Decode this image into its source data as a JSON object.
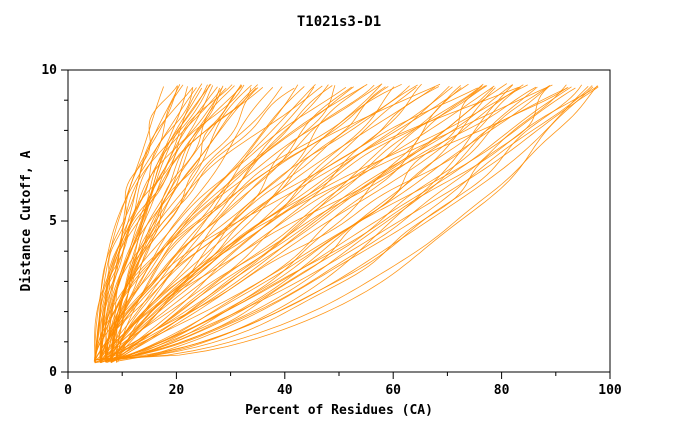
{
  "chart_data": {
    "type": "line",
    "title": "T1021s3-D1",
    "xlabel": "Percent of Residues (CA)",
    "ylabel": "Distance Cutoff, A",
    "xlim": [
      0,
      100
    ],
    "ylim": [
      0,
      10
    ],
    "x_ticks": [
      0,
      20,
      40,
      60,
      80,
      100
    ],
    "x_minor_ticks": [
      10,
      30,
      50,
      70,
      90
    ],
    "y_ticks": [
      0,
      5,
      10
    ],
    "y_minor_ticks": [
      1,
      2,
      3,
      4,
      6,
      7,
      8,
      9
    ],
    "line_color": "#ff8c00",
    "frame_color": "#000000",
    "background_color": "#ffffff",
    "legend": "none",
    "grid": false,
    "series_note": "Each model curve parameterized as [start_percent_at_low_cutoff, end_percent_at_cutoff_9.5, shape_exponent]; x = percent of residues under distance cutoff y",
    "series": [
      [
        5,
        18,
        1.6
      ],
      [
        6,
        19,
        1.8
      ],
      [
        5,
        20,
        1.4
      ],
      [
        7,
        20,
        2.0
      ],
      [
        6,
        21,
        1.5
      ],
      [
        5,
        22,
        1.9
      ],
      [
        8,
        22,
        1.3
      ],
      [
        6,
        23,
        1.7
      ],
      [
        7,
        24,
        1.5
      ],
      [
        5,
        24,
        2.2
      ],
      [
        6,
        25,
        1.4
      ],
      [
        8,
        25,
        1.8
      ],
      [
        7,
        26,
        1.6
      ],
      [
        5,
        26,
        2.0
      ],
      [
        6,
        27,
        1.5
      ],
      [
        9,
        27,
        1.9
      ],
      [
        7,
        28,
        1.3
      ],
      [
        6,
        28,
        2.1
      ],
      [
        8,
        29,
        1.6
      ],
      [
        5,
        29,
        1.8
      ],
      [
        7,
        30,
        1.4
      ],
      [
        6,
        30,
        2.3
      ],
      [
        9,
        31,
        1.7
      ],
      [
        7,
        32,
        1.5
      ],
      [
        6,
        32,
        2.0
      ],
      [
        8,
        33,
        1.6
      ],
      [
        5,
        33,
        1.9
      ],
      [
        7,
        34,
        1.4
      ],
      [
        9,
        35,
        1.8
      ],
      [
        6,
        35,
        2.2
      ],
      [
        8,
        36,
        1.5
      ],
      [
        7,
        36,
        1.9
      ],
      [
        6,
        38,
        1.2
      ],
      [
        7,
        40,
        1.6
      ],
      [
        5,
        42,
        0.9
      ],
      [
        8,
        42,
        1.8
      ],
      [
        6,
        44,
        1.3
      ],
      [
        7,
        45,
        1.0
      ],
      [
        9,
        46,
        1.5
      ],
      [
        6,
        47,
        1.9
      ],
      [
        5,
        48,
        1.1
      ],
      [
        8,
        49,
        1.4
      ],
      [
        7,
        50,
        0.9
      ],
      [
        6,
        51,
        1.7
      ],
      [
        9,
        52,
        1.2
      ],
      [
        5,
        53,
        1.5
      ],
      [
        7,
        54,
        1.0
      ],
      [
        8,
        55,
        1.8
      ],
      [
        6,
        56,
        1.3
      ],
      [
        7,
        57,
        0.95
      ],
      [
        5,
        58,
        1.6
      ],
      [
        9,
        59,
        1.1
      ],
      [
        6,
        60,
        1.4
      ],
      [
        8,
        61,
        0.9
      ],
      [
        7,
        62,
        1.7
      ],
      [
        5,
        63,
        1.2
      ],
      [
        6,
        64,
        1.0
      ],
      [
        9,
        65,
        1.5
      ],
      [
        7,
        66,
        0.85
      ],
      [
        8,
        67,
        1.3
      ],
      [
        6,
        68,
        1.1
      ],
      [
        5,
        68,
        1.8
      ],
      [
        6,
        70,
        0.8
      ],
      [
        7,
        71,
        1.1
      ],
      [
        5,
        72,
        0.6
      ],
      [
        8,
        73,
        0.9
      ],
      [
        6,
        74,
        1.2
      ],
      [
        7,
        75,
        0.7
      ],
      [
        9,
        76,
        1.0
      ],
      [
        5,
        77,
        0.55
      ],
      [
        6,
        78,
        0.85
      ],
      [
        8,
        79,
        1.15
      ],
      [
        7,
        80,
        0.65
      ],
      [
        5,
        81,
        0.9
      ],
      [
        6,
        82,
        0.5
      ],
      [
        9,
        83,
        1.05
      ],
      [
        7,
        84,
        0.75
      ],
      [
        8,
        85,
        0.95
      ],
      [
        5,
        86,
        0.6
      ],
      [
        6,
        87,
        1.1
      ],
      [
        7,
        88,
        0.7
      ],
      [
        9,
        89,
        0.85
      ],
      [
        5,
        90,
        0.5
      ],
      [
        6,
        91,
        0.95
      ],
      [
        8,
        92,
        0.65
      ],
      [
        7,
        93,
        0.8
      ],
      [
        5,
        94,
        0.55
      ],
      [
        6,
        95,
        0.9
      ],
      [
        9,
        96,
        0.7
      ],
      [
        7,
        96,
        0.45
      ],
      [
        8,
        97,
        0.85
      ],
      [
        6,
        97,
        0.6
      ],
      [
        5,
        98,
        0.75
      ],
      [
        7,
        98,
        0.5
      ],
      [
        6,
        93,
        1.3
      ],
      [
        8,
        90,
        1.5
      ],
      [
        7,
        86,
        1.4
      ],
      [
        5,
        82,
        1.6
      ],
      [
        9,
        78,
        1.35
      ],
      [
        6,
        75,
        1.5
      ]
    ]
  }
}
